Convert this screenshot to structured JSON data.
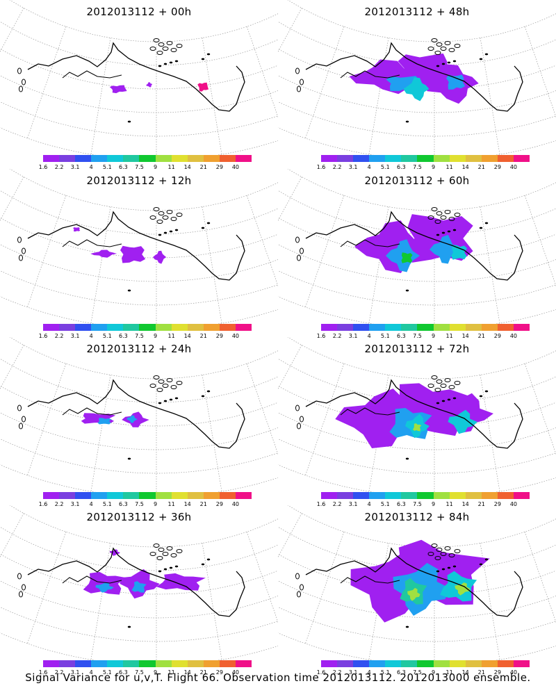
{
  "footer_caption": "Signal Variance for u,v,T. Flight 66. Observation time 2012013112. 2012013000 ensemble.",
  "colorbar": {
    "levels": [
      "1.6",
      "2.2",
      "3.1",
      "4",
      "5.1",
      "6.3",
      "7.5",
      "9",
      "11",
      "14",
      "21",
      "29",
      "40"
    ],
    "colors": [
      "#a020f0",
      "#7a3fe0",
      "#3050f0",
      "#20a0f0",
      "#10c8d8",
      "#20c8a0",
      "#10c830",
      "#a0e040",
      "#e0e030",
      "#e0c040",
      "#f0a030",
      "#f06030",
      "#f01088"
    ]
  },
  "panels": [
    {
      "title": "2012013112 + 00h",
      "forecast_hour": "00h"
    },
    {
      "title": "2012013112 + 48h",
      "forecast_hour": "48h"
    },
    {
      "title": "2012013112 + 12h",
      "forecast_hour": "12h"
    },
    {
      "title": "2012013112 + 60h",
      "forecast_hour": "60h"
    },
    {
      "title": "2012013112 + 24h",
      "forecast_hour": "24h"
    },
    {
      "title": "2012013112 + 72h",
      "forecast_hour": "72h"
    },
    {
      "title": "2012013112 + 36h",
      "forecast_hour": "36h"
    },
    {
      "title": "2012013112 + 84h",
      "forecast_hour": "84h"
    }
  ]
}
